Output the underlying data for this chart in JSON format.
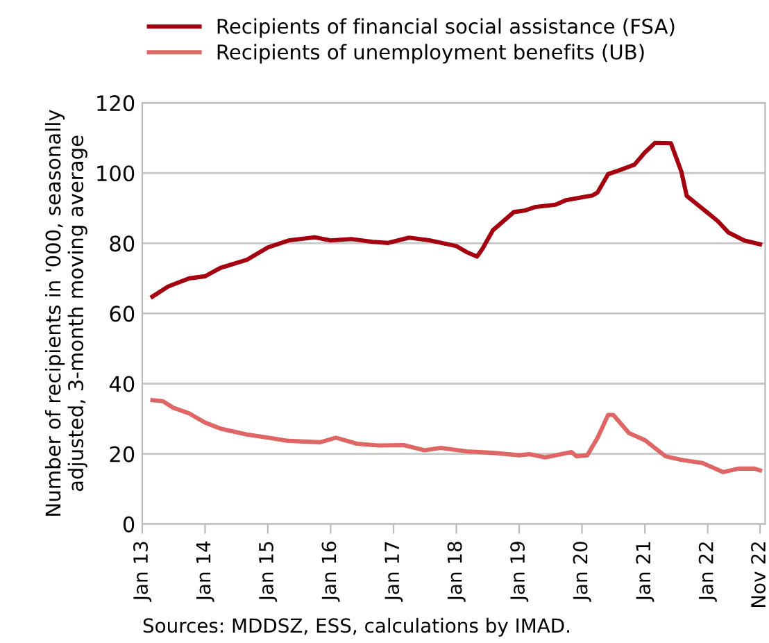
{
  "chart_data": {
    "type": "line",
    "ylabel": "Number of recipients in '000, seasonally\nadjusted, 3-month moving average",
    "series": [
      {
        "name": "Recipients of financial social assistance (FSA)",
        "color": "#a50010",
        "x": [
          "2013-03",
          "2013-06",
          "2013-10",
          "2014-01",
          "2014-04",
          "2014-09",
          "2015-01",
          "2015-05",
          "2015-10",
          "2016-01",
          "2016-05",
          "2016-09",
          "2016-12",
          "2017-04",
          "2017-08",
          "2018-01",
          "2018-03",
          "2018-05",
          "2018-06",
          "2018-08",
          "2018-12",
          "2019-02",
          "2019-04",
          "2019-08",
          "2019-10",
          "2020-03",
          "2020-04",
          "2020-06",
          "2020-08",
          "2020-11",
          "2021-01",
          "2021-03",
          "2021-06",
          "2021-08",
          "2021-09",
          "2021-12",
          "2022-03",
          "2022-05",
          "2022-08",
          "2022-11"
        ],
        "values": [
          64.8,
          67.7,
          70.0,
          70.6,
          73.0,
          75.3,
          78.8,
          80.8,
          81.7,
          80.8,
          81.2,
          80.4,
          80.1,
          81.6,
          80.8,
          79.2,
          77.5,
          76.2,
          78.4,
          83.7,
          88.9,
          89.3,
          90.3,
          91.0,
          92.3,
          93.6,
          94.5,
          99.7,
          100.7,
          102.4,
          105.9,
          108.6,
          108.5,
          100.4,
          93.5,
          89.9,
          86.3,
          83.1,
          80.8,
          79.7
        ]
      },
      {
        "name": "Recipients of unemployment benefits (UB)",
        "color": "#e06666",
        "x": [
          "2013-03",
          "2013-05",
          "2013-07",
          "2013-10",
          "2014-01",
          "2014-04",
          "2014-09",
          "2015-01",
          "2015-05",
          "2015-11",
          "2016-02",
          "2016-06",
          "2016-10",
          "2017-03",
          "2017-07",
          "2017-10",
          "2018-03",
          "2018-08",
          "2019-01",
          "2019-03",
          "2019-06",
          "2019-11",
          "2019-12",
          "2020-02",
          "2020-04",
          "2020-06",
          "2020-07",
          "2020-10",
          "2021-01",
          "2021-05",
          "2021-08",
          "2021-12",
          "2022-04",
          "2022-07",
          "2022-10",
          "2022-11"
        ],
        "values": [
          35.3,
          35.0,
          33.1,
          31.5,
          28.9,
          27.2,
          25.5,
          24.6,
          23.7,
          23.3,
          24.6,
          22.9,
          22.4,
          22.5,
          21.0,
          21.7,
          20.7,
          20.3,
          19.6,
          19.9,
          19.0,
          20.5,
          19.3,
          19.6,
          24.6,
          31.1,
          31.1,
          25.9,
          23.9,
          19.3,
          18.3,
          17.4,
          14.8,
          15.8,
          15.8,
          15.3
        ]
      }
    ],
    "xlim": [
      "2013-01",
      "2022-12"
    ],
    "xticks": [
      {
        "value": "2013-01",
        "label": "Jan 13"
      },
      {
        "value": "2014-01",
        "label": "Jan 14"
      },
      {
        "value": "2015-01",
        "label": "Jan 15"
      },
      {
        "value": "2016-01",
        "label": "Jan 16"
      },
      {
        "value": "2017-01",
        "label": "Jan 17"
      },
      {
        "value": "2018-01",
        "label": "Jan 18"
      },
      {
        "value": "2019-01",
        "label": "Jan 19"
      },
      {
        "value": "2020-01",
        "label": "Jan 20"
      },
      {
        "value": "2021-01",
        "label": "Jan 21"
      },
      {
        "value": "2022-01",
        "label": "Jan 22"
      },
      {
        "value": "2022-11",
        "label": "Nov 22"
      }
    ],
    "ylim": [
      0,
      120
    ],
    "yticks": [
      0,
      20,
      40,
      60,
      80,
      100,
      120
    ],
    "grid": "y",
    "legend": "top",
    "marker": "none",
    "line_style": "solid",
    "annotations": [
      "Sources: MDDSZ, ESS, calculations by IMAD."
    ]
  }
}
